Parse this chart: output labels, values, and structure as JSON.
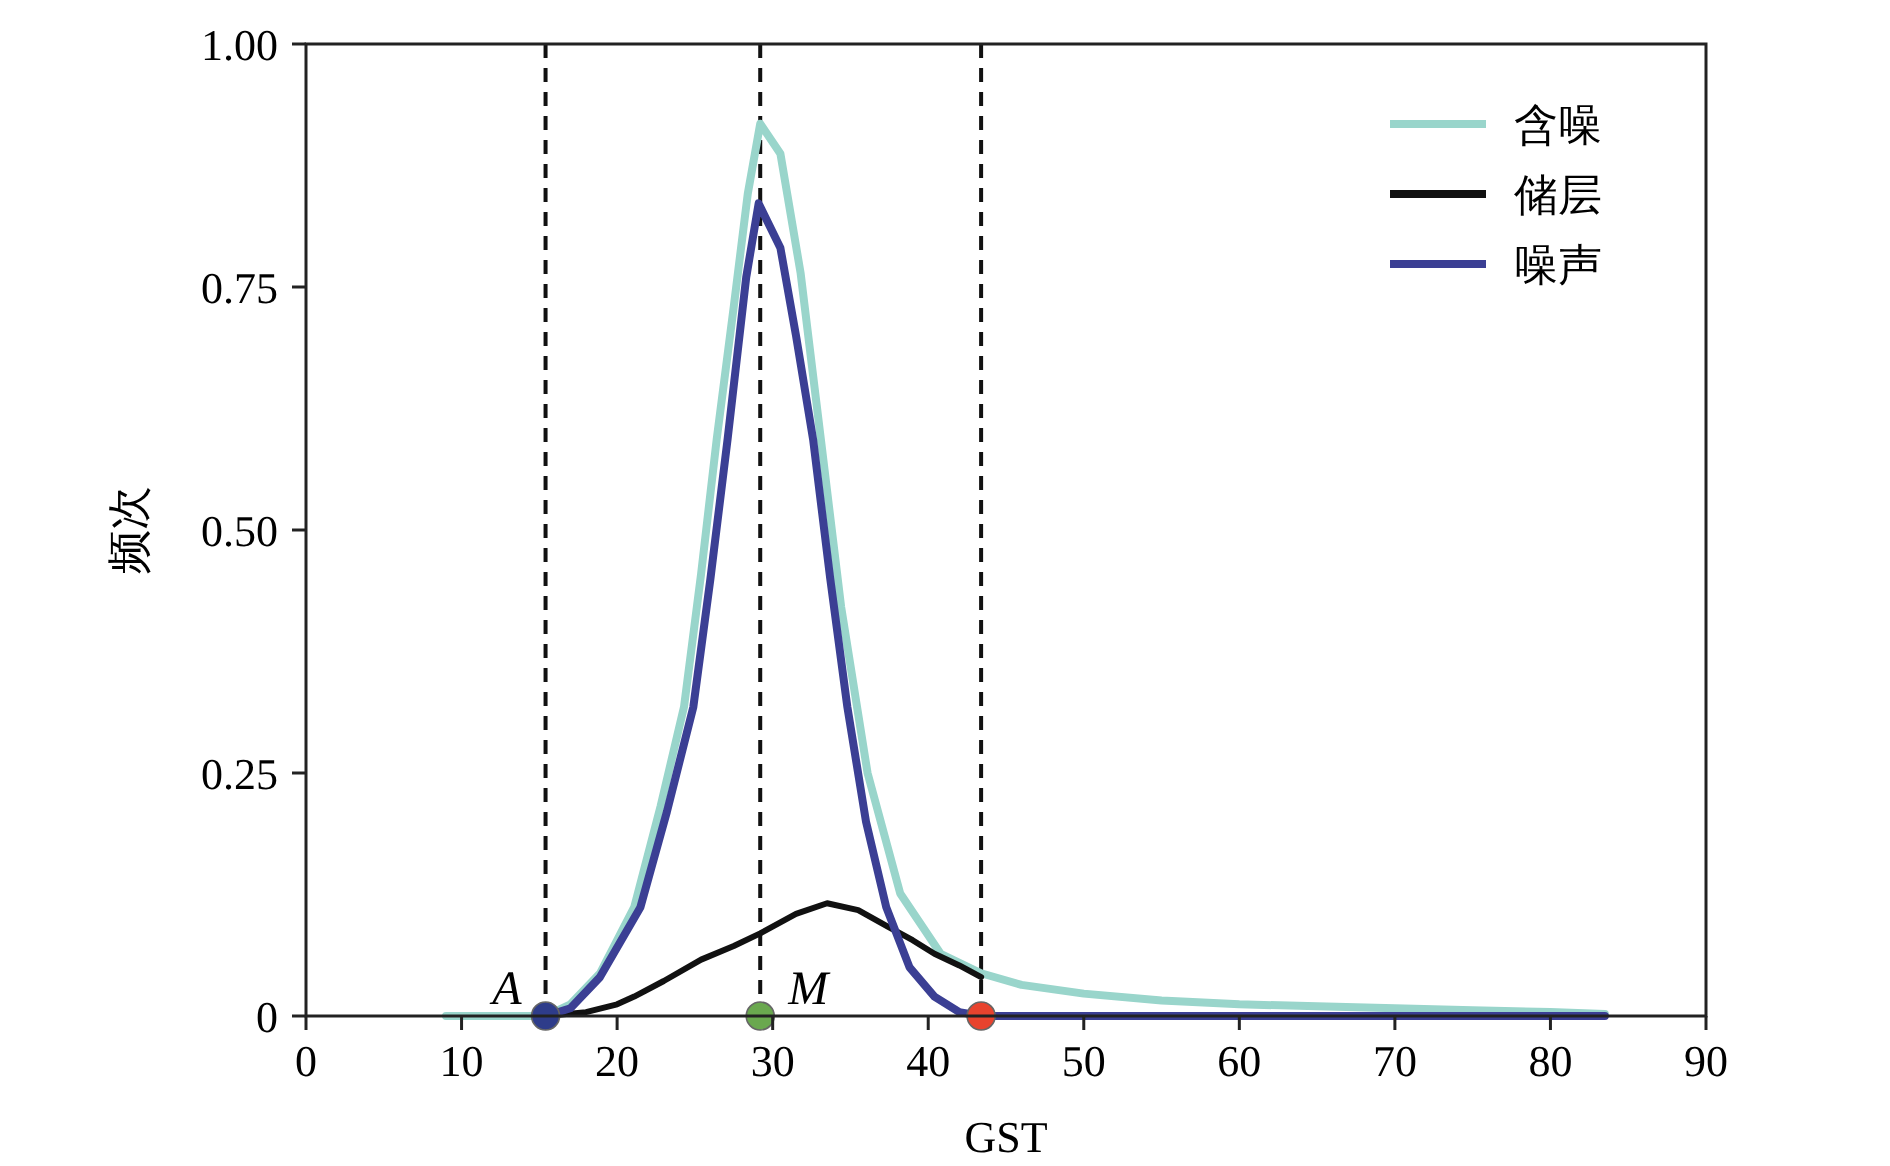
{
  "chart_data": {
    "type": "line",
    "xlabel": "GST",
    "ylabel": "频次",
    "xlim": [
      0,
      90
    ],
    "ylim": [
      0,
      1
    ],
    "xticks": [
      0,
      10,
      20,
      30,
      40,
      50,
      60,
      70,
      80,
      90
    ],
    "yticks": [
      0,
      {
        "value": 0.25,
        "label": "0.25"
      },
      {
        "value": 0.5,
        "label": "0.50"
      },
      {
        "value": 0.75,
        "label": "0.75"
      },
      {
        "value": 1,
        "label": "1.00"
      }
    ],
    "series": [
      {
        "name": "含噪",
        "color": "#99d5cb",
        "x": [
          9,
          15.4,
          17,
          18.9,
          21.1,
          22.8,
          24.3,
          25.4,
          26.4,
          27.5,
          28.4,
          29.2,
          30.5,
          31.8,
          33.1,
          34.4,
          36.1,
          38.2,
          40.8,
          43.4,
          46,
          50,
          55,
          60,
          65,
          70,
          75,
          80,
          83.5
        ],
        "values": [
          0,
          0,
          0.012,
          0.044,
          0.112,
          0.216,
          0.318,
          0.455,
          0.593,
          0.73,
          0.846,
          0.918,
          0.887,
          0.764,
          0.593,
          0.421,
          0.25,
          0.126,
          0.064,
          0.044,
          0.032,
          0.023,
          0.016,
          0.012,
          0.01,
          0.008,
          0.006,
          0.004,
          0.002
        ]
      },
      {
        "name": "储层",
        "color": "#111111",
        "x": [
          15.4,
          18,
          20,
          21.1,
          23,
          25.4,
          27.5,
          29.2,
          31.5,
          33.5,
          35.5,
          37.4,
          39,
          40.4,
          42,
          43.4
        ],
        "values": [
          0,
          0.004,
          0.012,
          0.02,
          0.036,
          0.058,
          0.072,
          0.085,
          0.105,
          0.116,
          0.109,
          0.092,
          0.078,
          0.064,
          0.052,
          0.04
        ]
      },
      {
        "name": "噪声",
        "color": "#3b3f94",
        "x": [
          15.4,
          17,
          18.9,
          21.5,
          23.2,
          24.9,
          26,
          27.1,
          28.3,
          29.1,
          30.5,
          31.5,
          32.6,
          33.7,
          34.8,
          36,
          37.3,
          38.8,
          40.4,
          42,
          43.4,
          50,
          60,
          70,
          83.5
        ],
        "values": [
          0,
          0.008,
          0.04,
          0.112,
          0.21,
          0.318,
          0.45,
          0.593,
          0.76,
          0.836,
          0.79,
          0.7,
          0.593,
          0.45,
          0.318,
          0.2,
          0.112,
          0.05,
          0.02,
          0.004,
          0,
          0,
          0,
          0,
          0
        ]
      },
      {
        "type": "scatter",
        "x": [
          15.4,
          29.2,
          43.4
        ],
        "values": [
          0,
          0,
          0
        ],
        "colors": [
          "#2e3c8a",
          "#6aa84f",
          "#e8432e"
        ],
        "marker": "circle"
      }
    ],
    "ref_lines": [
      {
        "axis": "x",
        "value": 15.4,
        "line_style": "dashed",
        "color": "#111111"
      },
      {
        "axis": "x",
        "value": 29.2,
        "line_style": "dashed",
        "color": "#111111"
      },
      {
        "axis": "x",
        "value": 43.4,
        "line_style": "dashed",
        "color": "#111111"
      }
    ],
    "annotations": [
      {
        "text": "*A*",
        "x": 15.4,
        "y": 0
      },
      {
        "text": "*M*",
        "x": 29.2,
        "y": 0
      }
    ],
    "legend": "top right",
    "grid": false
  }
}
